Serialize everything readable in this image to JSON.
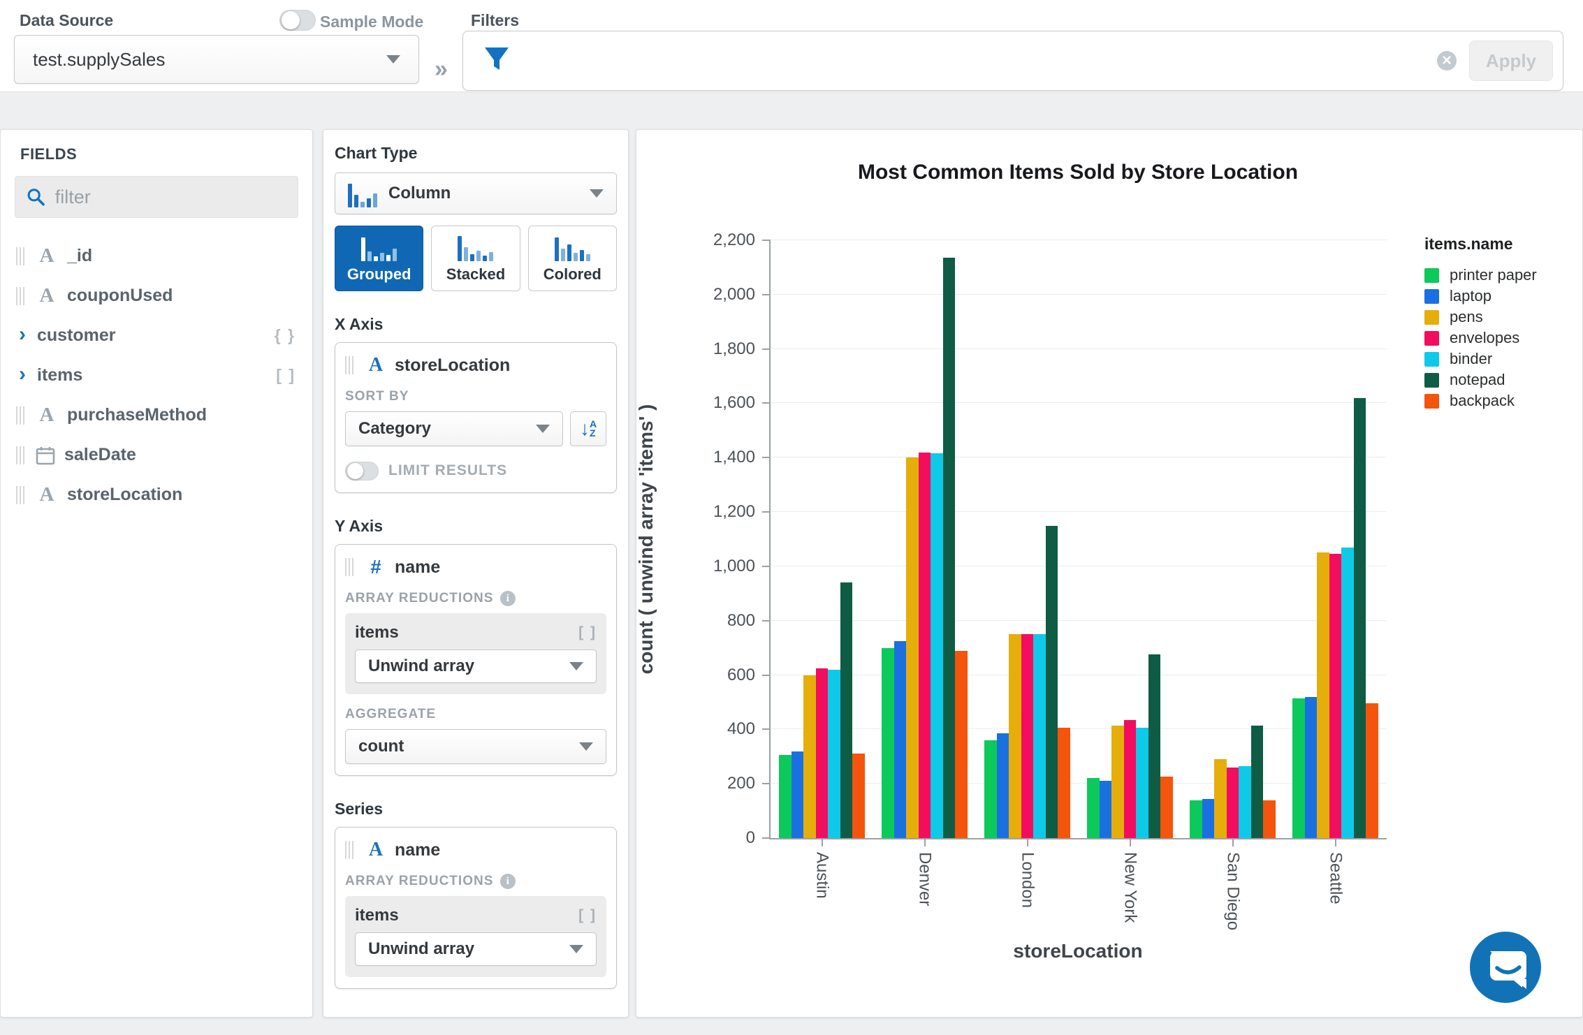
{
  "colors": {
    "accent": "#1068b4",
    "chat_bubble": "#1173b5"
  },
  "topbar": {
    "data_source_label": "Data Source",
    "data_source_value": "test.supplySales",
    "sample_mode_label": "Sample Mode",
    "filters_label": "Filters",
    "collapse_glyph": "»",
    "apply_label": "Apply"
  },
  "fields_panel": {
    "title": "FIELDS",
    "filter_placeholder": "filter",
    "items": [
      {
        "label": "_id",
        "icon": "string"
      },
      {
        "label": "couponUsed",
        "icon": "string"
      },
      {
        "label": "customer",
        "icon": "expand",
        "badge": "{ }"
      },
      {
        "label": "items",
        "icon": "expand",
        "badge": "[ ]"
      },
      {
        "label": "purchaseMethod",
        "icon": "string"
      },
      {
        "label": "saleDate",
        "icon": "date"
      },
      {
        "label": "storeLocation",
        "icon": "string"
      }
    ]
  },
  "encoding": {
    "chart_type_label": "Chart Type",
    "chart_type_value": "Column",
    "variants": [
      {
        "label": "Grouped",
        "selected": true
      },
      {
        "label": "Stacked",
        "selected": false
      },
      {
        "label": "Colored",
        "selected": false
      }
    ],
    "x_axis": {
      "heading": "X Axis",
      "field": "storeLocation",
      "sort_by_label": "SORT BY",
      "sort_by_value": "Category",
      "limit_label": "LIMIT RESULTS"
    },
    "y_axis": {
      "heading": "Y Axis",
      "field": "name",
      "reductions_label": "ARRAY REDUCTIONS",
      "reduction_field": "items",
      "reduction_badge": "[ ]",
      "reduction_value": "Unwind array",
      "aggregate_label": "AGGREGATE",
      "aggregate_value": "count"
    },
    "series": {
      "heading": "Series",
      "field": "name",
      "reductions_label": "ARRAY REDUCTIONS",
      "reduction_field": "items",
      "reduction_badge": "[ ]",
      "reduction_value": "Unwind array"
    }
  },
  "chart_data": {
    "type": "bar",
    "title": "Most Common Items Sold by Store Location",
    "xlabel": "storeLocation",
    "ylabel": "count ( unwind array 'items' )",
    "legend_title": "items.name",
    "legend_position": "right",
    "grid": true,
    "ylim": [
      0,
      2200
    ],
    "ytick_step": 200,
    "categories": [
      "Austin",
      "Denver",
      "London",
      "New York",
      "San Diego",
      "Seattle"
    ],
    "series": [
      {
        "name": "printer paper",
        "color": "#0bc95b",
        "values": [
          305,
          700,
          360,
          220,
          140,
          515
        ]
      },
      {
        "name": "laptop",
        "color": "#1b70e1",
        "values": [
          320,
          725,
          385,
          210,
          145,
          520
        ]
      },
      {
        "name": "pens",
        "color": "#e6ae0b",
        "values": [
          600,
          1400,
          750,
          415,
          290,
          1050
        ]
      },
      {
        "name": "envelopes",
        "color": "#f20d5e",
        "values": [
          625,
          1420,
          750,
          435,
          260,
          1045
        ]
      },
      {
        "name": "binder",
        "color": "#0fc9e9",
        "values": [
          620,
          1415,
          750,
          405,
          265,
          1070
        ]
      },
      {
        "name": "notepad",
        "color": "#0e5c44",
        "values": [
          940,
          2135,
          1150,
          675,
          415,
          1620
        ]
      },
      {
        "name": "backpack",
        "color": "#f4540b",
        "values": [
          310,
          690,
          405,
          225,
          140,
          495
        ]
      }
    ]
  }
}
